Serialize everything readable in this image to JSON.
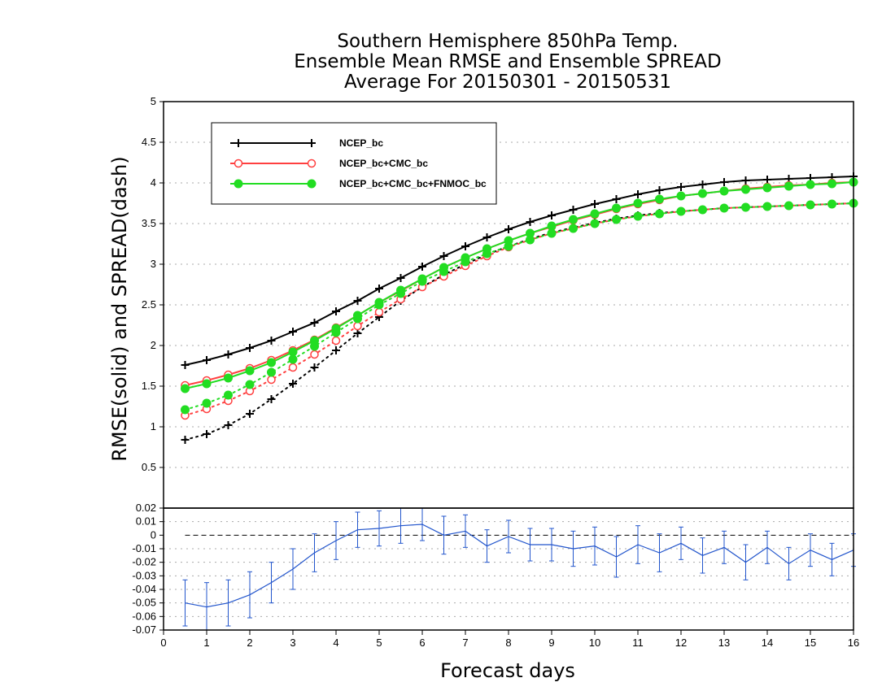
{
  "chart_data": [
    {
      "type": "line",
      "title": [
        "Southern Hemisphere 850hPa Temp.",
        "Ensemble Mean RMSE and Ensemble SPREAD",
        "Average For 20150301 - 20150531"
      ],
      "ylabel": "RMSE(solid) and SPREAD(dash)",
      "xlim": [
        0,
        16
      ],
      "ylim": [
        0,
        5
      ],
      "yticks": [
        "0.5",
        "1",
        "1.5",
        "2",
        "2.5",
        "3",
        "3.5",
        "4",
        "4.5",
        "5"
      ],
      "grid": true,
      "legend_position": "top-left",
      "x": [
        0.5,
        1,
        1.5,
        2,
        2.5,
        3,
        3.5,
        4,
        4.5,
        5,
        5.5,
        6,
        6.5,
        7,
        7.5,
        8,
        8.5,
        9,
        9.5,
        10,
        10.5,
        11,
        11.5,
        12,
        12.5,
        13,
        13.5,
        14,
        14.5,
        15,
        15.5,
        16
      ],
      "series": [
        {
          "name": "NCEP_bc",
          "color": "#000000",
          "marker": "plus",
          "rmse": [
            1.76,
            1.82,
            1.89,
            1.97,
            2.06,
            2.17,
            2.28,
            2.42,
            2.55,
            2.7,
            2.83,
            2.97,
            3.1,
            3.22,
            3.33,
            3.43,
            3.52,
            3.6,
            3.67,
            3.74,
            3.8,
            3.86,
            3.91,
            3.95,
            3.98,
            4.01,
            4.03,
            4.04,
            4.05,
            4.06,
            4.07,
            4.08
          ],
          "spread": [
            0.84,
            0.91,
            1.02,
            1.16,
            1.34,
            1.53,
            1.73,
            1.94,
            2.15,
            2.35,
            2.55,
            2.72,
            2.87,
            3.0,
            3.12,
            3.22,
            3.31,
            3.39,
            3.45,
            3.51,
            3.56,
            3.6,
            3.63,
            3.65,
            3.67,
            3.69,
            3.7,
            3.71,
            3.72,
            3.73,
            3.74,
            3.75
          ]
        },
        {
          "name": "NCEP_bc+CMC_bc",
          "color": "#ff4040",
          "marker": "open-circle",
          "rmse": [
            1.51,
            1.57,
            1.64,
            1.72,
            1.82,
            1.94,
            2.07,
            2.22,
            2.37,
            2.53,
            2.67,
            2.82,
            2.96,
            3.08,
            3.19,
            3.29,
            3.38,
            3.46,
            3.54,
            3.61,
            3.68,
            3.74,
            3.79,
            3.84,
            3.87,
            3.9,
            3.93,
            3.95,
            3.97,
            3.98,
            4.0,
            4.01
          ],
          "spread": [
            1.14,
            1.22,
            1.32,
            1.44,
            1.58,
            1.73,
            1.89,
            2.06,
            2.24,
            2.41,
            2.57,
            2.72,
            2.85,
            2.98,
            3.1,
            3.21,
            3.3,
            3.38,
            3.44,
            3.5,
            3.55,
            3.59,
            3.62,
            3.65,
            3.67,
            3.69,
            3.7,
            3.71,
            3.72,
            3.73,
            3.74,
            3.75
          ]
        },
        {
          "name": "NCEP_bc+CMC_bc+FNMOC_bc",
          "color": "#22dd22",
          "marker": "filled-circle",
          "rmse": [
            1.47,
            1.53,
            1.6,
            1.69,
            1.79,
            1.92,
            2.06,
            2.21,
            2.37,
            2.53,
            2.68,
            2.82,
            2.96,
            3.08,
            3.19,
            3.29,
            3.38,
            3.47,
            3.55,
            3.62,
            3.69,
            3.75,
            3.8,
            3.84,
            3.87,
            3.9,
            3.92,
            3.94,
            3.96,
            3.98,
            3.99,
            4.01
          ],
          "spread": [
            1.21,
            1.29,
            1.39,
            1.52,
            1.67,
            1.83,
            1.99,
            2.16,
            2.33,
            2.5,
            2.64,
            2.79,
            2.91,
            3.03,
            3.13,
            3.22,
            3.3,
            3.38,
            3.44,
            3.5,
            3.55,
            3.59,
            3.62,
            3.65,
            3.67,
            3.69,
            3.7,
            3.71,
            3.72,
            3.73,
            3.74,
            3.75
          ]
        }
      ]
    },
    {
      "type": "line",
      "xlabel": "Forecast days",
      "xlim": [
        0,
        16
      ],
      "ylim": [
        -0.07,
        0.02
      ],
      "xticks": [
        "0",
        "1",
        "2",
        "3",
        "4",
        "5",
        "6",
        "7",
        "8",
        "9",
        "10",
        "11",
        "12",
        "13",
        "14",
        "15",
        "16"
      ],
      "yticks": [
        "-0.07",
        "-0.06",
        "-0.05",
        "-0.04",
        "-0.03",
        "-0.02",
        "-0.01",
        "0",
        "0.01",
        "0.02"
      ],
      "grid": true,
      "reference_line": 0,
      "series": [
        {
          "color": "#2255cc",
          "x": [
            0.5,
            1,
            1.5,
            2,
            2.5,
            3,
            3.5,
            4,
            4.5,
            5,
            5.5,
            6,
            6.5,
            7,
            7.5,
            8,
            8.5,
            9,
            9.5,
            10,
            10.5,
            11,
            11.5,
            12,
            12.5,
            13,
            13.5,
            14,
            14.5,
            15,
            15.5,
            16
          ],
          "values": [
            -0.05,
            -0.053,
            -0.05,
            -0.044,
            -0.035,
            -0.025,
            -0.013,
            -0.004,
            0.004,
            0.005,
            0.007,
            0.008,
            0.0,
            0.003,
            -0.008,
            -0.001,
            -0.007,
            -0.007,
            -0.01,
            -0.008,
            -0.016,
            -0.007,
            -0.013,
            -0.006,
            -0.015,
            -0.009,
            -0.02,
            -0.009,
            -0.021,
            -0.011,
            -0.018,
            -0.011
          ],
          "error": [
            0.017,
            0.018,
            0.017,
            0.017,
            0.015,
            0.015,
            0.014,
            0.014,
            0.013,
            0.013,
            0.013,
            0.012,
            0.014,
            0.012,
            0.012,
            0.012,
            0.012,
            0.012,
            0.013,
            0.014,
            0.015,
            0.014,
            0.014,
            0.012,
            0.013,
            0.012,
            0.013,
            0.012,
            0.012,
            0.012,
            0.012,
            0.012
          ]
        }
      ]
    }
  ]
}
